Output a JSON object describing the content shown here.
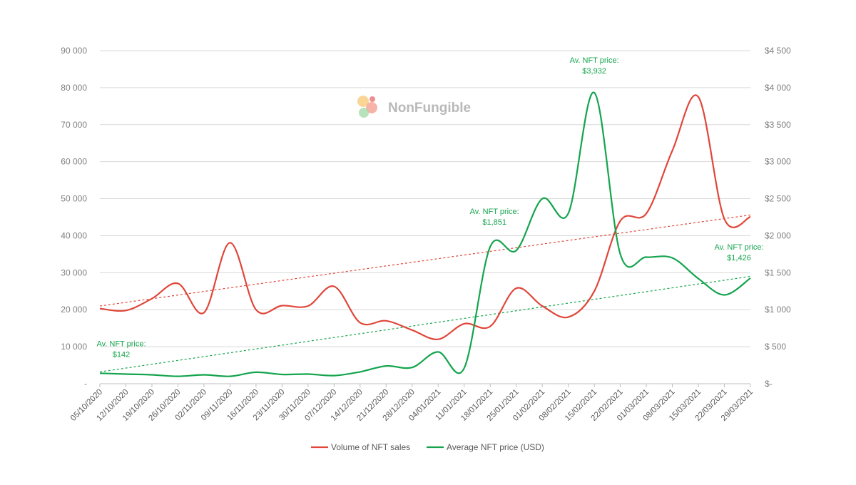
{
  "watermark": {
    "text": "NonFungible"
  },
  "chart_data": {
    "type": "line",
    "categories": [
      "05/10/2020",
      "12/10/2020",
      "19/10/2020",
      "26/10/2020",
      "02/11/2020",
      "09/11/2020",
      "16/11/2020",
      "23/11/2020",
      "30/11/2020",
      "07/12/2020",
      "14/12/2020",
      "21/12/2020",
      "28/12/2020",
      "04/01/2021",
      "11/01/2021",
      "18/01/2021",
      "25/01/2021",
      "01/02/2021",
      "08/02/2021",
      "15/02/2021",
      "22/02/2021",
      "01/03/2021",
      "08/03/2021",
      "15/03/2021",
      "22/03/2021",
      "29/03/2021"
    ],
    "y_left": {
      "ylim": [
        0,
        90000
      ],
      "ticks": [
        0,
        10000,
        20000,
        30000,
        40000,
        50000,
        60000,
        70000,
        80000,
        90000
      ],
      "tick_labels": [
        "-",
        "10 000",
        "20 000",
        "30 000",
        "40 000",
        "50 000",
        "60 000",
        "70 000",
        "80 000",
        "90 000"
      ]
    },
    "y_right": {
      "ylim": [
        0,
        4500
      ],
      "ticks": [
        0,
        500,
        1000,
        1500,
        2000,
        2500,
        3000,
        3500,
        4000,
        4500
      ],
      "tick_labels": [
        "$-",
        "$ 500",
        "$1 000",
        "$1 500",
        "$2 000",
        "$2 500",
        "$3 000",
        "$3 500",
        "$4 000",
        "$4 500"
      ]
    },
    "grid": true,
    "legend_position": "bottom",
    "series": [
      {
        "name": "Volume of NFT sales",
        "axis": "left",
        "color": "#e0463a",
        "values": [
          20300,
          19800,
          23000,
          27100,
          19200,
          38100,
          20000,
          21100,
          21000,
          26300,
          16500,
          17000,
          14500,
          12000,
          16200,
          15500,
          25800,
          21000,
          18000,
          25000,
          44000,
          46000,
          63000,
          77500,
          44500,
          45100
        ]
      },
      {
        "name": "Average NFT price (USD)",
        "axis": "right",
        "color": "#14a44d",
        "values": [
          142,
          130,
          120,
          100,
          120,
          100,
          155,
          125,
          130,
          110,
          160,
          240,
          220,
          430,
          210,
          1851,
          1800,
          2500,
          2300,
          3932,
          1750,
          1710,
          1700,
          1420,
          1200,
          1426
        ]
      }
    ],
    "trendlines": [
      {
        "series": "Volume of NFT sales",
        "axis": "left",
        "color": "#e0463a",
        "start": 21000,
        "end": 45600
      },
      {
        "series": "Average NFT price (USD)",
        "axis": "right",
        "color": "#14a44d",
        "start": 160,
        "end": 1450
      }
    ],
    "annotations": [
      {
        "lines": [
          "Av. NFT price:",
          "$142"
        ],
        "category_index": 0,
        "value": 142
      },
      {
        "lines": [
          "Av. NFT price:",
          "$1,851"
        ],
        "category_index": 15,
        "value": 1851
      },
      {
        "lines": [
          "Av. NFT price:",
          "$3,932"
        ],
        "category_index": 19,
        "value": 3932
      },
      {
        "lines": [
          "Av. NFT price:",
          "$1,426"
        ],
        "category_index": 25,
        "value": 1426
      }
    ]
  }
}
